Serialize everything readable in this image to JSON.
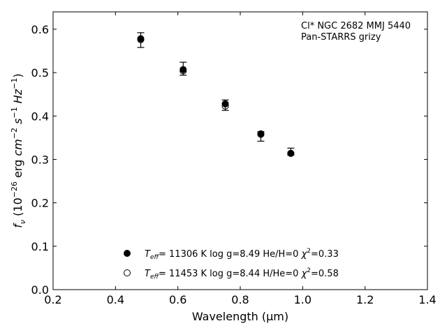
{
  "chart_data": {
    "type": "scatter",
    "annotations": [
      "Cl* NGC 2682 MMJ 5440",
      "Pan-STARRS grizy"
    ],
    "xlim": [
      0.2,
      1.4
    ],
    "ylim": [
      0.0,
      0.64
    ],
    "xticks": [
      0.2,
      0.4,
      0.6,
      0.8,
      1.0,
      1.2,
      1.4
    ],
    "yticks": [
      0.0,
      0.1,
      0.2,
      0.3,
      0.4,
      0.5,
      0.6
    ],
    "grid": false,
    "legend_position": "bottom-center",
    "observed": {
      "x": [
        0.481,
        0.617,
        0.752,
        0.866,
        0.962
      ],
      "y": [
        0.575,
        0.509,
        0.425,
        0.353,
        0.318
      ],
      "yerr": [
        0.017,
        0.015,
        0.012,
        0.011,
        0.008
      ]
    },
    "series": [
      {
        "name_parts": [
          "T",
          "eff",
          "= 11306 K  log g=8.49  He/H=0  ",
          "χ",
          "2",
          "=0.33"
        ],
        "marker": "filled-circle",
        "x": [
          0.481,
          0.617,
          0.752,
          0.866,
          0.962
        ],
        "y": [
          0.578,
          0.507,
          0.428,
          0.359,
          0.314
        ]
      },
      {
        "name_parts": [
          "T",
          "eff",
          "= 11453 K  log g=8.44  H/He=0  ",
          "χ",
          "2",
          "=0.58"
        ],
        "marker": "open-circle",
        "x": [
          0.481,
          0.617,
          0.752,
          0.866,
          0.962
        ],
        "y": [
          0.576,
          0.504,
          0.423,
          0.358,
          0.314
        ]
      }
    ]
  }
}
